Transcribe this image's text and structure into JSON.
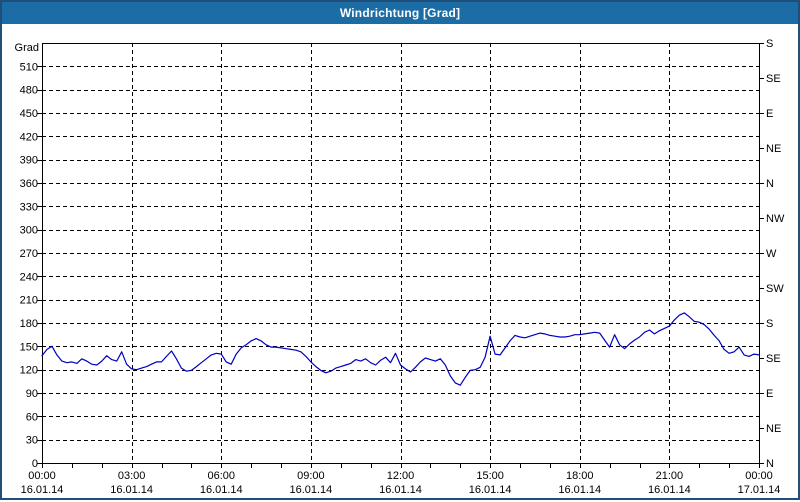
{
  "window": {
    "title": "Windrichtung [Grad]"
  },
  "colors": {
    "titlebar_bg": "#1C6CA5",
    "title_text": "#FFFFFF",
    "window_border": "#1F4E79",
    "axis_and_grid": "#000000",
    "tick_text": "#000000",
    "series_line": "#0000C0",
    "background": "#FFFFFF"
  },
  "chart_data": {
    "type": "line",
    "title": "Windrichtung [Grad]",
    "grid": "dashed",
    "y_axis": {
      "label": "Grad",
      "min": 0,
      "max": 540,
      "tick_step": 30,
      "tick_values": [
        0,
        30,
        60,
        90,
        120,
        150,
        180,
        210,
        240,
        270,
        300,
        330,
        360,
        390,
        420,
        450,
        480,
        510
      ]
    },
    "right_axis": {
      "ticks": [
        {
          "value": 0,
          "label": "N"
        },
        {
          "value": 45,
          "label": "NE"
        },
        {
          "value": 90,
          "label": "E"
        },
        {
          "value": 135,
          "label": "SE"
        },
        {
          "value": 180,
          "label": "S"
        },
        {
          "value": 225,
          "label": "SW"
        },
        {
          "value": 270,
          "label": "W"
        },
        {
          "value": 315,
          "label": "NW"
        },
        {
          "value": 360,
          "label": "N"
        },
        {
          "value": 405,
          "label": "NE"
        },
        {
          "value": 450,
          "label": "E"
        },
        {
          "value": 495,
          "label": "SE"
        },
        {
          "value": 540,
          "label": "S"
        }
      ]
    },
    "x_axis": {
      "range_hours": [
        0,
        24
      ],
      "minor_tick_hours": 1,
      "major_ticks": [
        {
          "hour": 0,
          "time": "00:00",
          "date": "16.01.14"
        },
        {
          "hour": 3,
          "time": "03:00",
          "date": "16.01.14"
        },
        {
          "hour": 6,
          "time": "06:00",
          "date": "16.01.14"
        },
        {
          "hour": 9,
          "time": "09:00",
          "date": "16.01.14"
        },
        {
          "hour": 12,
          "time": "12:00",
          "date": "16.01.14"
        },
        {
          "hour": 15,
          "time": "15:00",
          "date": "16.01.14"
        },
        {
          "hour": 18,
          "time": "18:00",
          "date": "16.01.14"
        },
        {
          "hour": 21,
          "time": "21:00",
          "date": "16.01.14"
        },
        {
          "hour": 24,
          "time": "00:00",
          "date": "17.01.14"
        }
      ]
    },
    "series": [
      {
        "name": "Windrichtung",
        "unit": "Grad",
        "sample_interval_minutes": 10,
        "start": "16.01.14 00:00",
        "values": [
          138,
          146,
          150,
          139,
          131,
          129,
          130,
          128,
          134,
          131,
          127,
          126,
          131,
          138,
          133,
          131,
          143,
          127,
          121,
          120,
          122,
          124,
          127,
          130,
          130,
          137,
          144,
          134,
          122,
          118,
          119,
          124,
          129,
          134,
          139,
          141,
          140,
          130,
          127,
          140,
          148,
          152,
          157,
          160,
          157,
          152,
          149,
          149,
          148,
          147,
          146,
          145,
          143,
          137,
          130,
          124,
          119,
          116,
          118,
          122,
          124,
          126,
          128,
          133,
          131,
          134,
          129,
          126,
          132,
          136,
          129,
          141,
          126,
          121,
          117,
          123,
          130,
          135,
          133,
          131,
          134,
          126,
          112,
          103,
          100,
          110,
          119,
          120,
          123,
          136,
          163,
          140,
          139,
          148,
          157,
          164,
          162,
          161,
          163,
          165,
          167,
          166,
          164,
          163,
          162,
          162,
          163,
          165,
          165,
          166,
          167,
          168,
          167,
          158,
          149,
          165,
          152,
          147,
          153,
          158,
          162,
          168,
          171,
          166,
          170,
          173,
          176,
          184,
          190,
          193,
          188,
          182,
          181,
          178,
          172,
          164,
          157,
          146,
          141,
          143,
          149,
          139,
          137,
          140,
          139
        ]
      }
    ]
  }
}
